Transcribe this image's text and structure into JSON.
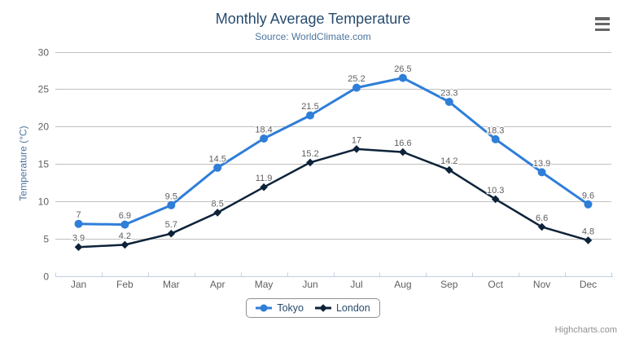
{
  "header": {
    "title": "Monthly Average Temperature",
    "subtitle": "Source: WorldClimate.com"
  },
  "chart_data": {
    "type": "line",
    "title": "Monthly Average Temperature",
    "subtitle": "Source: WorldClimate.com",
    "categories": [
      "Jan",
      "Feb",
      "Mar",
      "Apr",
      "May",
      "Jun",
      "Jul",
      "Aug",
      "Sep",
      "Oct",
      "Nov",
      "Dec"
    ],
    "series": [
      {
        "name": "Tokyo",
        "color": "#2f7ed8",
        "marker": "circle",
        "values": [
          7,
          6.9,
          9.5,
          14.5,
          18.4,
          21.5,
          25.2,
          26.5,
          23.3,
          18.3,
          13.9,
          9.6
        ]
      },
      {
        "name": "London",
        "color": "#0d233a",
        "marker": "diamond",
        "values": [
          3.9,
          4.2,
          5.7,
          8.5,
          11.9,
          15.2,
          17,
          16.6,
          14.2,
          10.3,
          6.6,
          4.8
        ]
      }
    ],
    "xlabel": "",
    "ylabel": "Temperature (°C)",
    "ylim": [
      0,
      30
    ],
    "ytick_interval": 5,
    "grid": true,
    "legend_position": "bottom-center",
    "data_labels": true
  },
  "menu": {
    "icon": "hamburger-menu-icon"
  },
  "credits": {
    "text": "Highcharts.com"
  },
  "colors": {
    "tokyo_series": "#2f7ed8",
    "london_series": "#0d233a",
    "grid_line": "#c0c0c0",
    "axis_line": "#c0d0e0",
    "title_text": "#274b6d",
    "subtitle_text": "#4d759e",
    "axis_title_text": "#4d759e",
    "tick_label_text": "#606060",
    "data_label_text": "#606060",
    "legend_text": "#274b6d",
    "legend_border": "#909090",
    "credits_text": "#909090",
    "menu_icon": "#666666",
    "background": "#ffffff"
  }
}
